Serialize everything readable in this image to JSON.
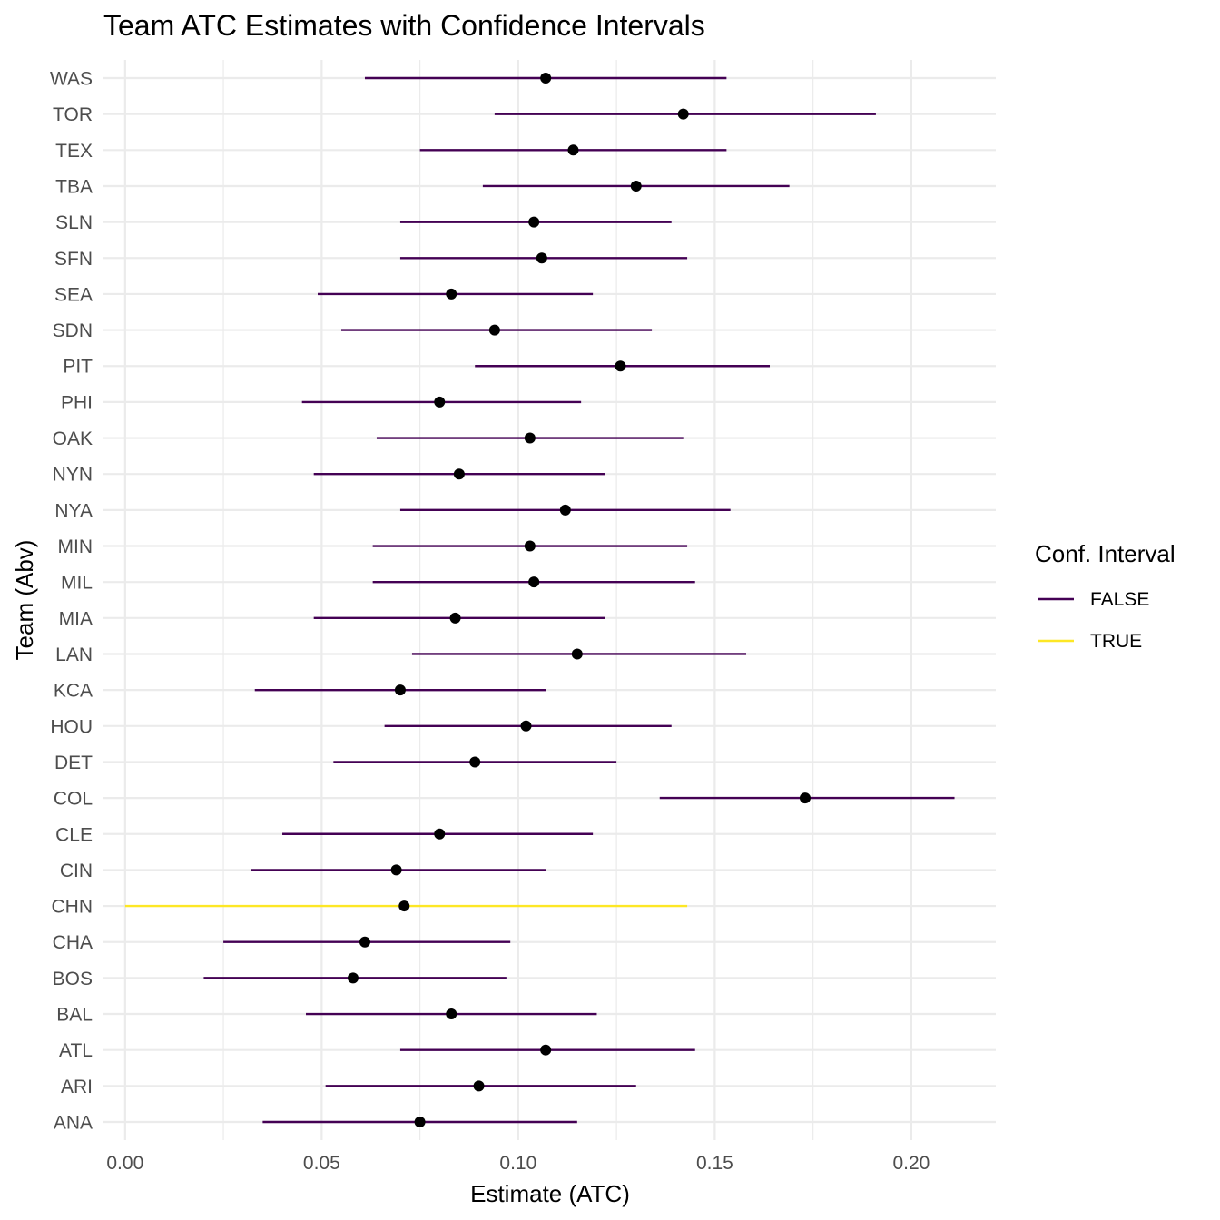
{
  "chart_data": {
    "type": "scatter",
    "subtype": "point-range",
    "title": "Team ATC Estimates with Confidence Intervals",
    "xlabel": "Estimate (ATC)",
    "ylabel": "Team (Abv)",
    "xlim": [
      -0.0055,
      0.2215
    ],
    "x_ticks": [
      0.0,
      0.05,
      0.1,
      0.15,
      0.2
    ],
    "x_tick_labels": [
      "0.00",
      "0.05",
      "0.10",
      "0.15",
      "0.20"
    ],
    "grid": true,
    "legend": {
      "title": "Conf. Interval",
      "placement": "right",
      "entries": [
        {
          "label": "FALSE",
          "color": "#440154"
        },
        {
          "label": "TRUE",
          "color": "#FDE725"
        }
      ]
    },
    "point_color": "#000000",
    "teams": [
      {
        "team": "ANA",
        "estimate": 0.075,
        "lower": 0.035,
        "upper": 0.115,
        "ci": "FALSE"
      },
      {
        "team": "ARI",
        "estimate": 0.09,
        "lower": 0.051,
        "upper": 0.13,
        "ci": "FALSE"
      },
      {
        "team": "ATL",
        "estimate": 0.107,
        "lower": 0.07,
        "upper": 0.145,
        "ci": "FALSE"
      },
      {
        "team": "BAL",
        "estimate": 0.083,
        "lower": 0.046,
        "upper": 0.12,
        "ci": "FALSE"
      },
      {
        "team": "BOS",
        "estimate": 0.058,
        "lower": 0.02,
        "upper": 0.097,
        "ci": "FALSE"
      },
      {
        "team": "CHA",
        "estimate": 0.061,
        "lower": 0.025,
        "upper": 0.098,
        "ci": "FALSE"
      },
      {
        "team": "CHN",
        "estimate": 0.071,
        "lower": 0.0,
        "upper": 0.143,
        "ci": "TRUE"
      },
      {
        "team": "CIN",
        "estimate": 0.069,
        "lower": 0.032,
        "upper": 0.107,
        "ci": "FALSE"
      },
      {
        "team": "CLE",
        "estimate": 0.08,
        "lower": 0.04,
        "upper": 0.119,
        "ci": "FALSE"
      },
      {
        "team": "COL",
        "estimate": 0.173,
        "lower": 0.136,
        "upper": 0.211,
        "ci": "FALSE"
      },
      {
        "team": "DET",
        "estimate": 0.089,
        "lower": 0.053,
        "upper": 0.125,
        "ci": "FALSE"
      },
      {
        "team": "HOU",
        "estimate": 0.102,
        "lower": 0.066,
        "upper": 0.139,
        "ci": "FALSE"
      },
      {
        "team": "KCA",
        "estimate": 0.07,
        "lower": 0.033,
        "upper": 0.107,
        "ci": "FALSE"
      },
      {
        "team": "LAN",
        "estimate": 0.115,
        "lower": 0.073,
        "upper": 0.158,
        "ci": "FALSE"
      },
      {
        "team": "MIA",
        "estimate": 0.084,
        "lower": 0.048,
        "upper": 0.122,
        "ci": "FALSE"
      },
      {
        "team": "MIL",
        "estimate": 0.104,
        "lower": 0.063,
        "upper": 0.145,
        "ci": "FALSE"
      },
      {
        "team": "MIN",
        "estimate": 0.103,
        "lower": 0.063,
        "upper": 0.143,
        "ci": "FALSE"
      },
      {
        "team": "NYA",
        "estimate": 0.112,
        "lower": 0.07,
        "upper": 0.154,
        "ci": "FALSE"
      },
      {
        "team": "NYN",
        "estimate": 0.085,
        "lower": 0.048,
        "upper": 0.122,
        "ci": "FALSE"
      },
      {
        "team": "OAK",
        "estimate": 0.103,
        "lower": 0.064,
        "upper": 0.142,
        "ci": "FALSE"
      },
      {
        "team": "PHI",
        "estimate": 0.08,
        "lower": 0.045,
        "upper": 0.116,
        "ci": "FALSE"
      },
      {
        "team": "PIT",
        "estimate": 0.126,
        "lower": 0.089,
        "upper": 0.164,
        "ci": "FALSE"
      },
      {
        "team": "SDN",
        "estimate": 0.094,
        "lower": 0.055,
        "upper": 0.134,
        "ci": "FALSE"
      },
      {
        "team": "SEA",
        "estimate": 0.083,
        "lower": 0.049,
        "upper": 0.119,
        "ci": "FALSE"
      },
      {
        "team": "SFN",
        "estimate": 0.106,
        "lower": 0.07,
        "upper": 0.143,
        "ci": "FALSE"
      },
      {
        "team": "SLN",
        "estimate": 0.104,
        "lower": 0.07,
        "upper": 0.139,
        "ci": "FALSE"
      },
      {
        "team": "TBA",
        "estimate": 0.13,
        "lower": 0.091,
        "upper": 0.169,
        "ci": "FALSE"
      },
      {
        "team": "TEX",
        "estimate": 0.114,
        "lower": 0.075,
        "upper": 0.153,
        "ci": "FALSE"
      },
      {
        "team": "TOR",
        "estimate": 0.142,
        "lower": 0.094,
        "upper": 0.191,
        "ci": "FALSE"
      },
      {
        "team": "WAS",
        "estimate": 0.107,
        "lower": 0.061,
        "upper": 0.153,
        "ci": "FALSE"
      }
    ]
  }
}
